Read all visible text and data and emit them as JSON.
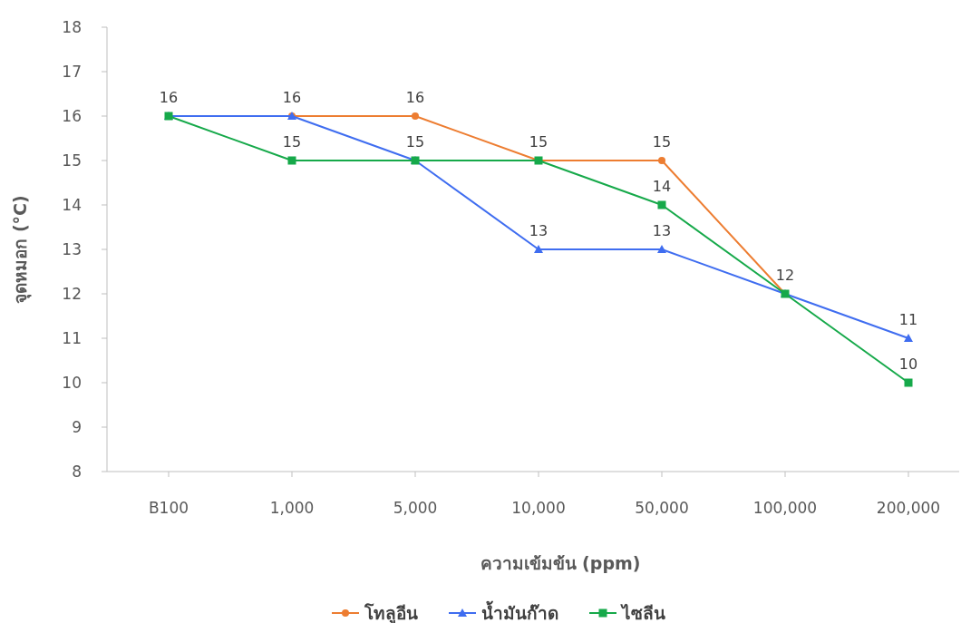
{
  "chart_data": {
    "type": "line",
    "xlabel": "ความเข้มข้น (ppm)",
    "ylabel": "จุดหมอก (°C)",
    "categories": [
      "B100",
      "1,000",
      "5,000",
      "10,000",
      "50,000",
      "100,000",
      "200,000"
    ],
    "ylim": [
      8,
      18
    ],
    "yticks": [
      8,
      9,
      10,
      11,
      12,
      13,
      14,
      15,
      16,
      17,
      18
    ],
    "grid": false,
    "legend": "bottom",
    "series": [
      {
        "name": "โทลูอีน",
        "color": "#ed7d31",
        "marker": "circle",
        "values": [
          16,
          16,
          16,
          15,
          15,
          12,
          null
        ],
        "value_labels": [
          "16",
          "16",
          "16",
          "15",
          "15",
          "12",
          null
        ]
      },
      {
        "name": "น้ำมันก๊าด",
        "color": "#3f6df0",
        "marker": "triangle",
        "values": [
          16,
          16,
          15,
          13,
          13,
          12,
          11
        ],
        "value_labels": [
          null,
          null,
          null,
          "13",
          "13",
          null,
          "11"
        ]
      },
      {
        "name": "ไซลีน",
        "color": "#16a94a",
        "marker": "square",
        "values": [
          16,
          15,
          15,
          15,
          14,
          12,
          10
        ],
        "value_labels": [
          null,
          "15",
          "15",
          null,
          "14",
          null,
          "10"
        ]
      }
    ]
  }
}
